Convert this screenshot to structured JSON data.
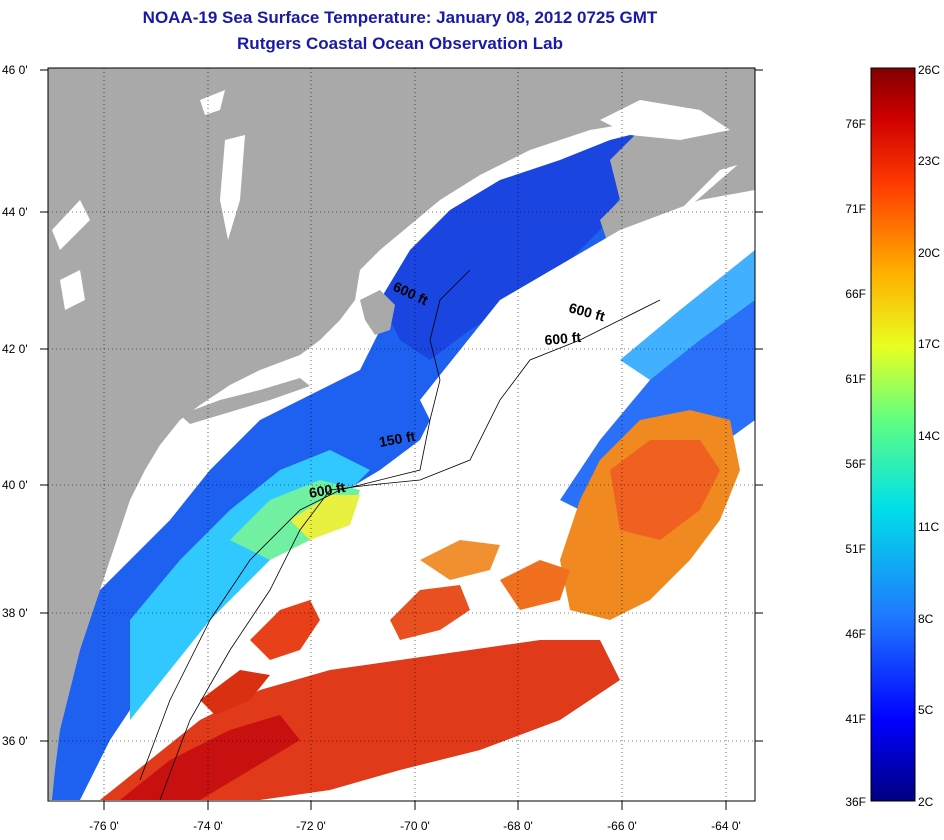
{
  "title": "NOAA-19 Sea Surface Temperature:  January 08, 2012 0725 GMT",
  "subtitle": "Rutgers Coastal Ocean Observation Lab",
  "lat_ticks": [
    "46 0'",
    "44 0'",
    "42 0'",
    "40 0'",
    "38 0'",
    "36 0'"
  ],
  "lon_ticks": [
    "-76 0'",
    "-74 0'",
    "-72 0'",
    "-70 0'",
    "-68 0'",
    "-66 0'",
    "-64 0'"
  ],
  "contour_labels": [
    "600 ft",
    "600 ft",
    "600 ft",
    "150 ft",
    "600 ft"
  ],
  "colorbar": {
    "fahrenheit": [
      "76F",
      "71F",
      "66F",
      "61F",
      "56F",
      "51F",
      "46F",
      "41F",
      "36F"
    ],
    "celsius": [
      "26C",
      "23C",
      "20C",
      "17C",
      "14C",
      "11C",
      "8C",
      "5C",
      "2C"
    ]
  },
  "colors": {
    "land": "#a9a9a9",
    "cloud": "#ffffff",
    "title": "#1a1aa8",
    "cold": "#1a3fd8",
    "warm": "#e03a1a"
  }
}
